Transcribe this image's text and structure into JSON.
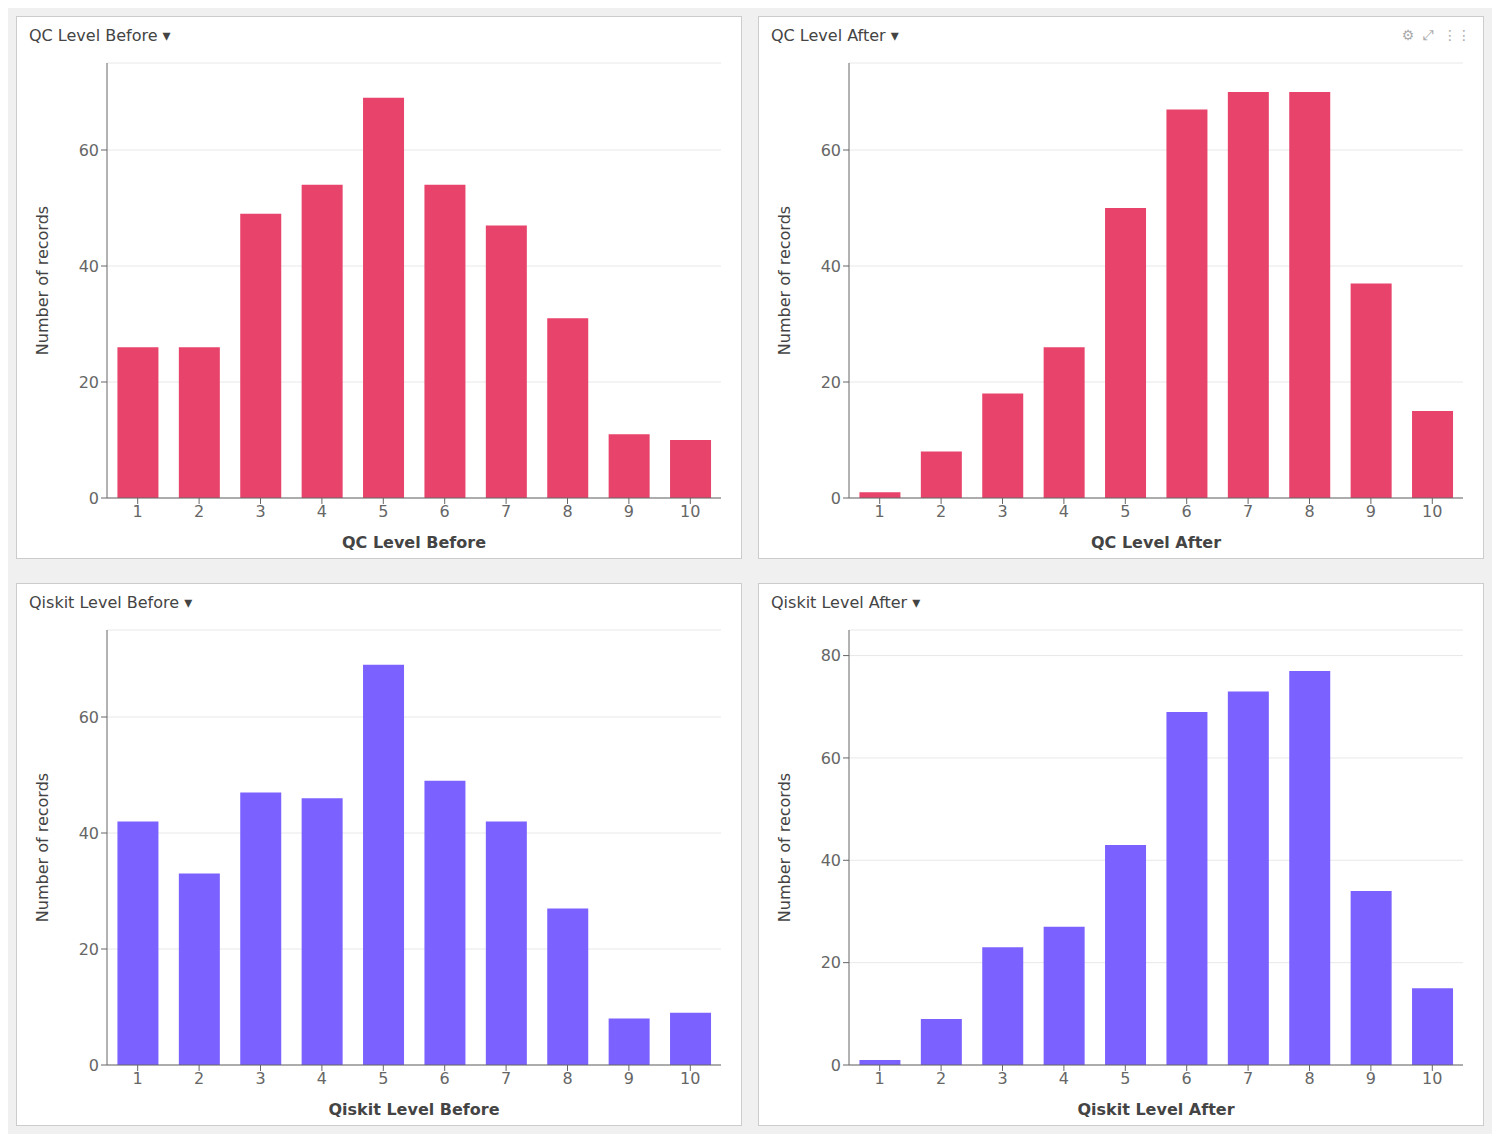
{
  "chart_data": [
    {
      "type": "bar",
      "title": "QC Level Before ▾",
      "x_label": "QC Level Before",
      "y_label": "Number of records",
      "categories": [
        1,
        2,
        3,
        4,
        5,
        6,
        7,
        8,
        9,
        10
      ],
      "values": [
        26,
        26,
        49,
        54,
        69,
        54,
        47,
        31,
        11,
        10
      ],
      "color": "#E8436A",
      "ylim": [
        0,
        75
      ],
      "yticks": [
        0,
        20,
        40,
        60
      ],
      "grid": true
    },
    {
      "type": "bar",
      "title": "QC Level After ▾",
      "x_label": "QC Level After",
      "y_label": "Number of records",
      "annotations": [
        "⚙  ⤢  ⋮⋮"
      ],
      "categories": [
        1,
        2,
        3,
        4,
        5,
        6,
        7,
        8,
        9,
        10
      ],
      "values": [
        1,
        8,
        18,
        26,
        50,
        67,
        70,
        70,
        37,
        15
      ],
      "color": "#E8436A",
      "ylim": [
        0,
        75
      ],
      "yticks": [
        0,
        20,
        40,
        60
      ],
      "grid": true
    },
    {
      "type": "bar",
      "title": "Qiskit Level Before ▾",
      "x_label": "Qiskit Level Before",
      "y_label": "Number of records",
      "categories": [
        1,
        2,
        3,
        4,
        5,
        6,
        7,
        8,
        9,
        10
      ],
      "values": [
        42,
        33,
        47,
        46,
        69,
        49,
        42,
        27,
        8,
        9
      ],
      "color": "#7B61FF",
      "ylim": [
        0,
        75
      ],
      "yticks": [
        0,
        20,
        40,
        60
      ],
      "grid": true
    },
    {
      "type": "bar",
      "title": "Qiskit Level After ▾",
      "x_label": "Qiskit Level After",
      "y_label": "Number of records",
      "categories": [
        1,
        2,
        3,
        4,
        5,
        6,
        7,
        8,
        9,
        10
      ],
      "values": [
        1,
        9,
        23,
        27,
        43,
        69,
        73,
        77,
        34,
        15
      ],
      "color": "#7B61FF",
      "ylim": [
        0,
        85
      ],
      "yticks": [
        0,
        20,
        40,
        60,
        80
      ],
      "grid": true
    }
  ]
}
